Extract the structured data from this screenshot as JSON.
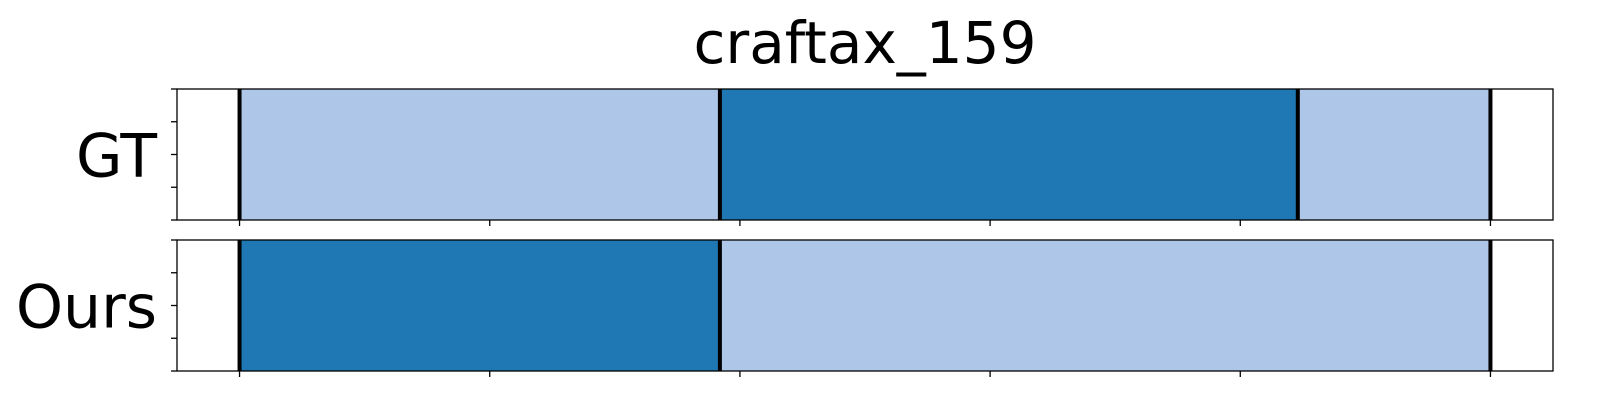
{
  "chart_data": {
    "type": "bar",
    "title": "craftax_159",
    "xlabel": "",
    "ylabel": "",
    "xlim": [
      -0.25,
      5.25
    ],
    "grid": false,
    "colors": {
      "light": "#aec7e8",
      "dark": "#1f77b4",
      "boundary": "#000000"
    },
    "rows": [
      {
        "label": "GT",
        "segments": [
          {
            "start": 0.0,
            "end": 1.92,
            "color": "light"
          },
          {
            "start": 1.92,
            "end": 4.23,
            "color": "dark"
          },
          {
            "start": 4.23,
            "end": 5.0,
            "color": "light"
          }
        ],
        "boundaries": [
          0.0,
          1.92,
          4.23,
          5.0
        ]
      },
      {
        "label": "Ours",
        "segments": [
          {
            "start": 0.0,
            "end": 1.92,
            "color": "dark"
          },
          {
            "start": 1.92,
            "end": 5.0,
            "color": "light"
          }
        ],
        "boundaries": [
          0.0,
          1.92,
          5.0
        ]
      }
    ],
    "x_ticks": [
      0,
      1,
      2,
      3,
      4,
      5
    ],
    "y_ticks_per_panel": 5
  }
}
